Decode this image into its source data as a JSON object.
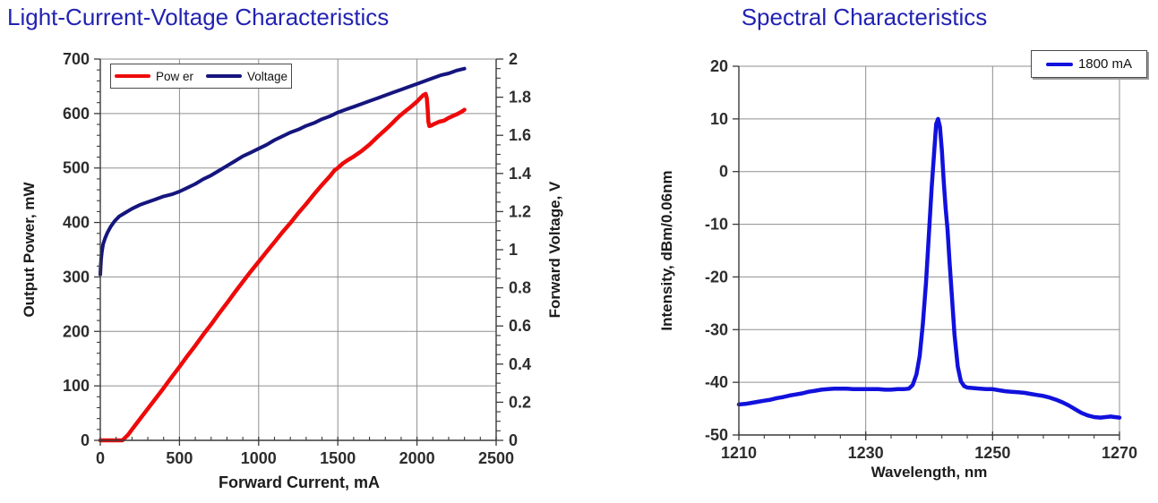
{
  "charts": [
    {
      "id": "liv",
      "type": "line",
      "title": "Light-Current-Voltage Characteristics",
      "xlabel": "Forward Current, mA",
      "x_range": [
        0,
        2500
      ],
      "x_minor_step": 100,
      "x_ticks": {
        "values": [
          0,
          500,
          1000,
          1500,
          2000,
          2500
        ],
        "labels": [
          "0",
          "500",
          "1000",
          "1500",
          "2000",
          "2500"
        ]
      },
      "y_left": {
        "label": "Output Power, mW",
        "range": [
          0,
          700
        ],
        "minor_step": 20,
        "ticks": {
          "values": [
            0,
            100,
            200,
            300,
            400,
            500,
            600,
            700
          ],
          "labels": [
            "0",
            "100",
            "200",
            "300",
            "400",
            "500",
            "600",
            "700"
          ]
        }
      },
      "y_right": {
        "label": "Forward Voltage, V",
        "range": [
          0,
          2
        ],
        "minor_step": 0.05,
        "ticks": {
          "values": [
            0,
            0.2,
            0.4,
            0.6,
            0.8,
            1,
            1.2,
            1.4,
            1.6,
            1.8,
            2
          ],
          "labels": [
            "0",
            "0.2",
            "0.4",
            "0.6",
            "0.8",
            "1",
            "1.2",
            "1.4",
            "1.6",
            "1.8",
            "2"
          ]
        }
      },
      "grid": true,
      "legend_position": "top-left",
      "legend": [
        {
          "label": "Pow er",
          "color": "#ee0a0a"
        },
        {
          "label": "Voltage",
          "color": "#15157e"
        }
      ],
      "series": [
        {
          "name": "Power",
          "axis": "left",
          "color": "#ee0a0a",
          "width": 4.5,
          "points": [
            [
              0,
              0
            ],
            [
              50,
              0
            ],
            [
              100,
              0
            ],
            [
              140,
              0
            ],
            [
              150,
              3
            ],
            [
              175,
              10
            ],
            [
              200,
              20
            ],
            [
              250,
              39
            ],
            [
              300,
              58
            ],
            [
              350,
              77
            ],
            [
              400,
              96
            ],
            [
              450,
              116
            ],
            [
              500,
              135
            ],
            [
              550,
              155
            ],
            [
              600,
              174
            ],
            [
              650,
              194
            ],
            [
              700,
              213
            ],
            [
              750,
              233
            ],
            [
              800,
              252
            ],
            [
              850,
              272
            ],
            [
              900,
              291
            ],
            [
              950,
              310
            ],
            [
              1000,
              328
            ],
            [
              1050,
              346
            ],
            [
              1100,
              364
            ],
            [
              1150,
              382
            ],
            [
              1200,
              399
            ],
            [
              1250,
              417
            ],
            [
              1300,
              434
            ],
            [
              1350,
              452
            ],
            [
              1400,
              469
            ],
            [
              1450,
              485
            ],
            [
              1480,
              496
            ],
            [
              1500,
              500
            ],
            [
              1530,
              508
            ],
            [
              1560,
              514
            ],
            [
              1600,
              521
            ],
            [
              1650,
              531
            ],
            [
              1700,
              543
            ],
            [
              1750,
              557
            ],
            [
              1800,
              570
            ],
            [
              1850,
              584
            ],
            [
              1870,
              590
            ],
            [
              1900,
              598
            ],
            [
              1930,
              605
            ],
            [
              1960,
              612
            ],
            [
              2000,
              622
            ],
            [
              2020,
              628
            ],
            [
              2040,
              634
            ],
            [
              2055,
              636
            ],
            [
              2062,
              628
            ],
            [
              2068,
              606
            ],
            [
              2072,
              585
            ],
            [
              2078,
              577
            ],
            [
              2090,
              578
            ],
            [
              2110,
              581
            ],
            [
              2140,
              585
            ],
            [
              2170,
              587
            ],
            [
              2200,
              592
            ],
            [
              2230,
              596
            ],
            [
              2260,
              600
            ],
            [
              2280,
              603
            ],
            [
              2300,
              607
            ]
          ]
        },
        {
          "name": "Voltage",
          "axis": "right",
          "color": "#15157e",
          "width": 4,
          "points": [
            [
              0,
              0.87
            ],
            [
              2,
              0.91
            ],
            [
              5,
              0.95
            ],
            [
              10,
              0.99
            ],
            [
              18,
              1.03
            ],
            [
              30,
              1.06
            ],
            [
              45,
              1.09
            ],
            [
              65,
              1.12
            ],
            [
              90,
              1.15
            ],
            [
              120,
              1.175
            ],
            [
              150,
              1.19
            ],
            [
              200,
              1.215
            ],
            [
              250,
              1.235
            ],
            [
              300,
              1.25
            ],
            [
              350,
              1.265
            ],
            [
              400,
              1.28
            ],
            [
              450,
              1.29
            ],
            [
              500,
              1.305
            ],
            [
              550,
              1.325
            ],
            [
              600,
              1.345
            ],
            [
              650,
              1.37
            ],
            [
              700,
              1.39
            ],
            [
              750,
              1.415
            ],
            [
              800,
              1.44
            ],
            [
              850,
              1.465
            ],
            [
              900,
              1.49
            ],
            [
              950,
              1.51
            ],
            [
              1000,
              1.53
            ],
            [
              1050,
              1.55
            ],
            [
              1100,
              1.575
            ],
            [
              1150,
              1.595
            ],
            [
              1200,
              1.615
            ],
            [
              1250,
              1.63
            ],
            [
              1300,
              1.65
            ],
            [
              1350,
              1.665
            ],
            [
              1400,
              1.685
            ],
            [
              1450,
              1.7
            ],
            [
              1500,
              1.72
            ],
            [
              1550,
              1.735
            ],
            [
              1600,
              1.75
            ],
            [
              1650,
              1.765
            ],
            [
              1700,
              1.78
            ],
            [
              1750,
              1.795
            ],
            [
              1800,
              1.81
            ],
            [
              1850,
              1.825
            ],
            [
              1900,
              1.84
            ],
            [
              1950,
              1.855
            ],
            [
              2000,
              1.87
            ],
            [
              2050,
              1.885
            ],
            [
              2100,
              1.9
            ],
            [
              2150,
              1.915
            ],
            [
              2200,
              1.925
            ],
            [
              2250,
              1.94
            ],
            [
              2300,
              1.95
            ]
          ]
        }
      ]
    },
    {
      "id": "spectrum",
      "type": "line",
      "title": "Spectral Characteristics",
      "xlabel": "Wavelength, nm",
      "x_range": [
        1210,
        1270
      ],
      "x_minor_step": 4,
      "x_ticks": {
        "values": [
          1210,
          1230,
          1250,
          1270
        ],
        "labels": [
          "1210",
          "1230",
          "1250",
          "1270"
        ]
      },
      "y_left": {
        "label": "Intensity, dBm/0.06nm",
        "range": [
          -50,
          20
        ],
        "minor_step": null,
        "ticks": {
          "values": [
            -50,
            -40,
            -30,
            -20,
            -10,
            0,
            10,
            20
          ],
          "labels": [
            "-50",
            "-40",
            "-30",
            "-20",
            "-10",
            "0",
            "10",
            "20"
          ]
        }
      },
      "grid": true,
      "legend_position": "top-right",
      "legend": [
        {
          "label": "1800 mA",
          "color": "#1111dd"
        }
      ],
      "series": [
        {
          "name": "1800 mA",
          "axis": "left",
          "color": "#1111dd",
          "width": 4.5,
          "points": [
            [
              1210,
              -44.2
            ],
            [
              1211,
              -44.1
            ],
            [
              1212,
              -43.9
            ],
            [
              1213,
              -43.7
            ],
            [
              1214,
              -43.5
            ],
            [
              1215,
              -43.3
            ],
            [
              1216,
              -43.0
            ],
            [
              1217,
              -42.8
            ],
            [
              1218,
              -42.5
            ],
            [
              1219,
              -42.3
            ],
            [
              1220,
              -42.1
            ],
            [
              1221,
              -41.8
            ],
            [
              1222,
              -41.6
            ],
            [
              1223,
              -41.4
            ],
            [
              1224,
              -41.3
            ],
            [
              1225,
              -41.2
            ],
            [
              1226,
              -41.2
            ],
            [
              1227,
              -41.2
            ],
            [
              1228,
              -41.3
            ],
            [
              1229,
              -41.3
            ],
            [
              1230,
              -41.3
            ],
            [
              1231,
              -41.3
            ],
            [
              1232,
              -41.3
            ],
            [
              1233,
              -41.4
            ],
            [
              1234,
              -41.4
            ],
            [
              1235,
              -41.3
            ],
            [
              1236,
              -41.3
            ],
            [
              1236.8,
              -41.2
            ],
            [
              1237.4,
              -40.5
            ],
            [
              1238,
              -38.5
            ],
            [
              1238.5,
              -35
            ],
            [
              1239,
              -29
            ],
            [
              1239.5,
              -21
            ],
            [
              1240,
              -11
            ],
            [
              1240.4,
              -3
            ],
            [
              1240.8,
              4
            ],
            [
              1241.1,
              9
            ],
            [
              1241.4,
              10
            ],
            [
              1241.7,
              8.5
            ],
            [
              1242,
              4
            ],
            [
              1242.3,
              -2
            ],
            [
              1242.6,
              -7
            ],
            [
              1242.9,
              -11
            ],
            [
              1243.2,
              -17
            ],
            [
              1243.6,
              -24
            ],
            [
              1244,
              -31
            ],
            [
              1244.5,
              -37
            ],
            [
              1245,
              -39.8
            ],
            [
              1245.5,
              -40.7
            ],
            [
              1246,
              -41.0
            ],
            [
              1247,
              -41.1
            ],
            [
              1248,
              -41.2
            ],
            [
              1249,
              -41.3
            ],
            [
              1250,
              -41.3
            ],
            [
              1251,
              -41.5
            ],
            [
              1252,
              -41.7
            ],
            [
              1253,
              -41.8
            ],
            [
              1254,
              -41.9
            ],
            [
              1255,
              -42.0
            ],
            [
              1256,
              -42.2
            ],
            [
              1257,
              -42.4
            ],
            [
              1258,
              -42.6
            ],
            [
              1259,
              -42.9
            ],
            [
              1260,
              -43.3
            ],
            [
              1261,
              -43.8
            ],
            [
              1262,
              -44.4
            ],
            [
              1263,
              -45.1
            ],
            [
              1264,
              -45.8
            ],
            [
              1265,
              -46.3
            ],
            [
              1266,
              -46.6
            ],
            [
              1267,
              -46.7
            ],
            [
              1267.8,
              -46.6
            ],
            [
              1268.6,
              -46.5
            ],
            [
              1269.3,
              -46.6
            ],
            [
              1270,
              -46.7
            ]
          ]
        }
      ]
    }
  ],
  "style_colors": {
    "title_blue": "#2222b2",
    "grid_gray": "#8f8f8f",
    "axis_dark": "#3a3a3a",
    "tick_text": "#2d2d2d"
  }
}
